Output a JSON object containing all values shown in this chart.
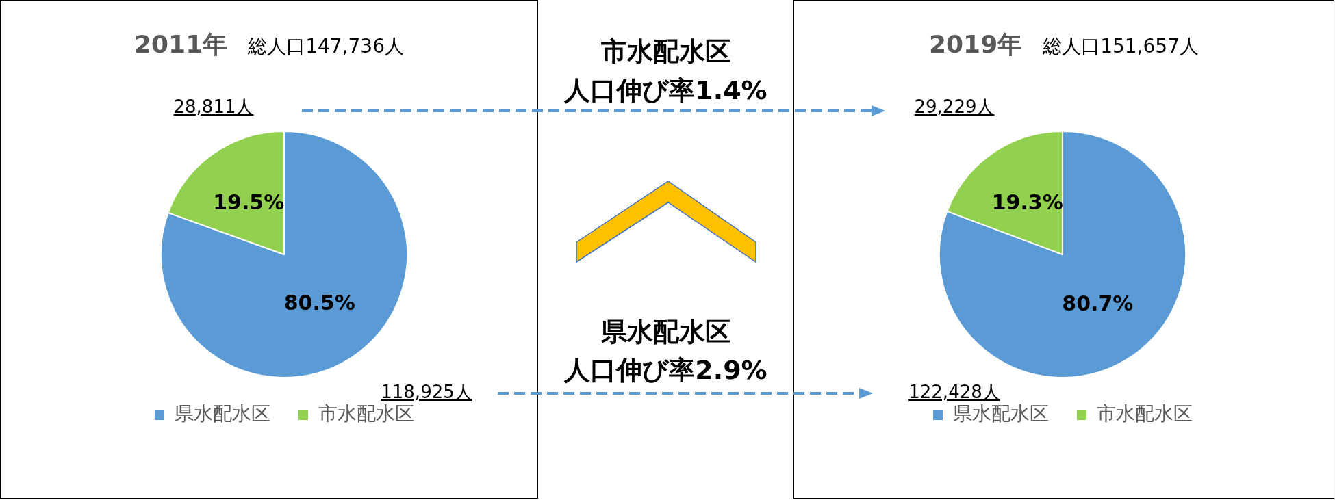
{
  "chart_data": [
    {
      "type": "pie",
      "title": "2011年",
      "subtitle": "総人口147,736人",
      "categories": [
        "県水配水区",
        "市水配水区"
      ],
      "values": [
        80.5,
        19.5
      ],
      "colors": [
        "#5b9bd5",
        "#92d050"
      ],
      "value_labels": [
        "80.5%",
        "19.5%"
      ],
      "legend": "bottom",
      "annotations": [
        "28,811人",
        "118,925人"
      ]
    },
    {
      "type": "other",
      "annotations": [
        "市水配水区",
        "人口伸び率1.4%",
        "県水配水区",
        "人口伸び率2.9%"
      ]
    },
    {
      "type": "pie",
      "title": "2019年",
      "subtitle": "総人口151,657人",
      "categories": [
        "県水配水区",
        "市水配水区"
      ],
      "values": [
        80.7,
        19.3
      ],
      "colors": [
        "#5b9bd5",
        "#92d050"
      ],
      "value_labels": [
        "80.7%",
        "19.3%"
      ],
      "legend": "bottom",
      "annotations": [
        "29,229人",
        "122,428人"
      ]
    }
  ]
}
